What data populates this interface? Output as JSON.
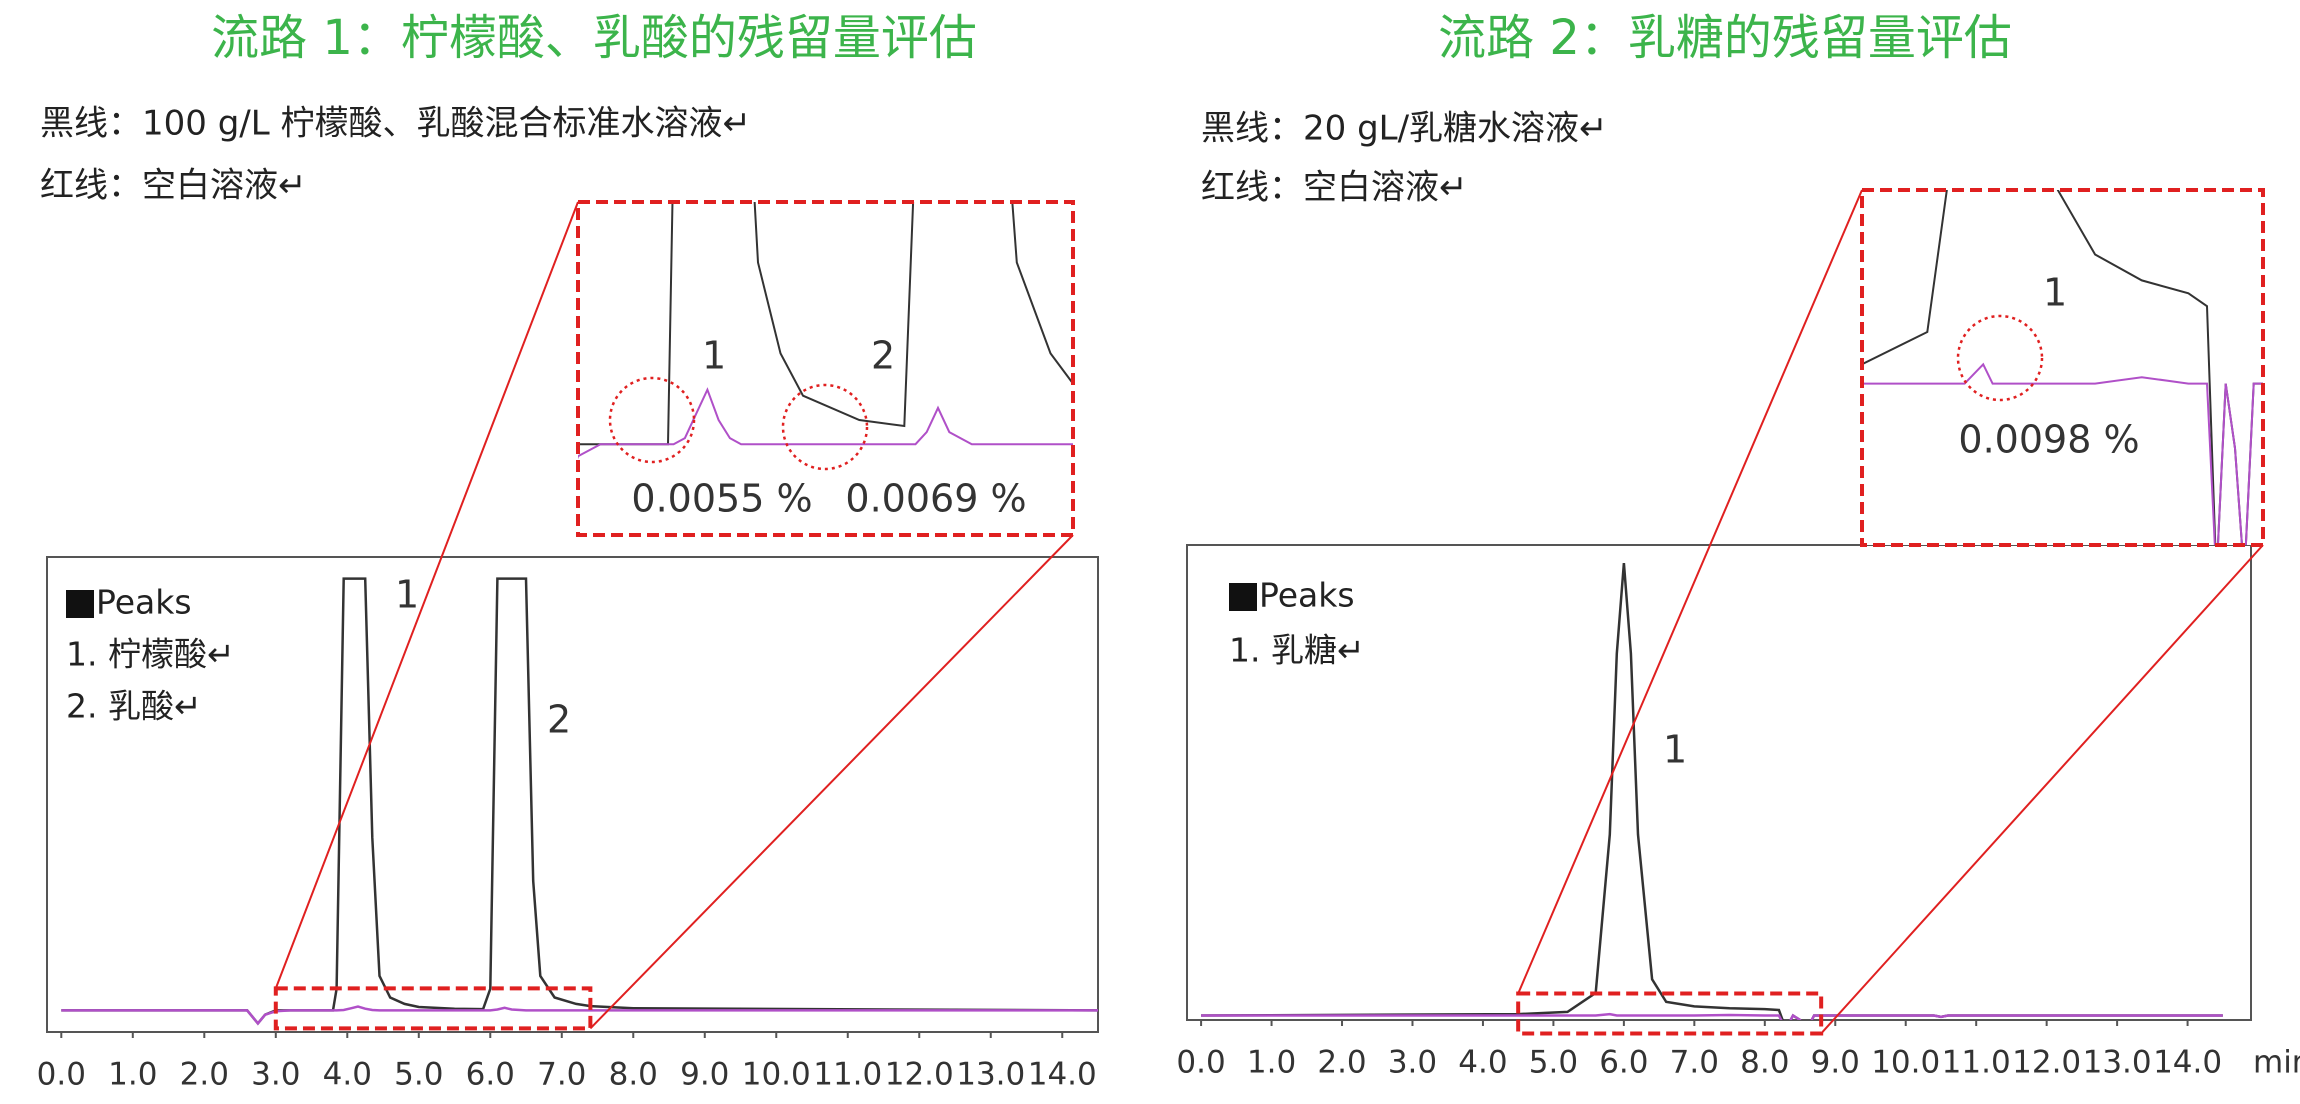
{
  "chart_data": [
    {
      "type": "line",
      "title": "流路 1：柠檬酸、乳酸的残留量评估",
      "x": [
        0,
        2.6,
        2.75,
        2.85,
        3.0,
        3.2,
        3.5,
        3.8,
        3.85,
        3.95,
        4.05,
        4.15,
        4.25,
        4.35,
        4.45,
        4.6,
        4.8,
        5.0,
        5.5,
        5.9,
        6.0,
        6.1,
        6.2,
        6.3,
        6.5,
        6.6,
        6.7,
        6.9,
        7.2,
        7.4,
        8.0,
        14.5
      ],
      "series": [
        {
          "name": "黑线：100 g/L 柠檬酸、乳酸混合标准水溶液↵",
          "color": "#333333",
          "values": [
            0,
            0,
            -3,
            -1,
            0,
            0,
            0,
            0,
            5,
            100,
            100,
            100,
            100,
            40,
            8,
            3,
            1.5,
            0.8,
            0.4,
            0.3,
            5,
            100,
            100,
            100,
            100,
            30,
            8,
            3,
            1.5,
            1,
            0.5,
            0
          ]
        },
        {
          "name": "红线：空白溶液↵",
          "color": "#b050c8",
          "values": [
            0,
            0,
            -3,
            -1,
            -0.2,
            0,
            0,
            0,
            0,
            0.1,
            0.5,
            0.9,
            0.4,
            0.1,
            0,
            0,
            0,
            0,
            0,
            0,
            0,
            0.2,
            0.6,
            0.2,
            0,
            0,
            0,
            0,
            0,
            0,
            0,
            0
          ]
        }
      ],
      "xlim": [
        -0.2,
        14.5
      ],
      "ylim": [
        -5,
        105
      ],
      "xticks": [
        {
          "value": 0,
          "label": "0.0"
        },
        {
          "value": 1,
          "label": "1.0"
        },
        {
          "value": 2,
          "label": "2.0"
        },
        {
          "value": 3,
          "label": "3.0"
        },
        {
          "value": 4,
          "label": "4.0"
        },
        {
          "value": 5,
          "label": "5.0"
        },
        {
          "value": 6,
          "label": "6.0"
        },
        {
          "value": 7,
          "label": "7.0"
        },
        {
          "value": 8,
          "label": "8.0"
        },
        {
          "value": 9,
          "label": "9.0"
        },
        {
          "value": 10,
          "label": "10.0"
        },
        {
          "value": 11,
          "label": "11.0"
        },
        {
          "value": 12,
          "label": "12.0"
        },
        {
          "value": 13,
          "label": "13.0"
        },
        {
          "value": 14,
          "label": "14.0"
        }
      ],
      "peaks_legend": {
        "title": "Peaks",
        "items": [
          "1. 柠檬酸↵",
          "2. 乳酸↵"
        ]
      },
      "peak_labels": [
        "1",
        "2"
      ],
      "inset": {
        "xlim": [
          3.0,
          7.4
        ],
        "ylim": [
          -1.5,
          4
        ],
        "labels": [
          "1",
          "2"
        ],
        "percents": [
          "0.0055 %",
          "0.0069 %"
        ]
      }
    },
    {
      "type": "line",
      "title": "流路 2：乳糖的残留量评估",
      "x": [
        0,
        4.5,
        5.2,
        5.6,
        5.8,
        5.9,
        6.0,
        6.1,
        6.2,
        6.4,
        6.6,
        7.0,
        7.5,
        8.0,
        8.2,
        8.3,
        8.4,
        8.5,
        8.6,
        8.7,
        8.8,
        10.4,
        10.5,
        10.6,
        14.5
      ],
      "series": [
        {
          "name": "黑线：20 gL/乳糖水溶液↵",
          "color": "#333333",
          "values": [
            0,
            0.3,
            0.8,
            5,
            40,
            80,
            100,
            80,
            40,
            8,
            3,
            2,
            1.6,
            1.4,
            1.2,
            -3,
            0,
            -1,
            -3,
            0,
            0,
            0,
            -0.3,
            0,
            0
          ]
        },
        {
          "name": "红线：空白溶液↵",
          "color": "#b050c8",
          "values": [
            0,
            0,
            0,
            0,
            0.3,
            0,
            0,
            0,
            0,
            0,
            0,
            0,
            0.1,
            0,
            0,
            -3,
            0,
            -1,
            -3,
            0,
            0,
            0,
            -0.3,
            0,
            0
          ]
        }
      ],
      "xlim": [
        -0.2,
        14.9
      ],
      "ylim": [
        -1,
        104
      ],
      "xticks": [
        {
          "value": 0,
          "label": "0.0"
        },
        {
          "value": 1,
          "label": "1.0"
        },
        {
          "value": 2,
          "label": "2.0"
        },
        {
          "value": 3,
          "label": "3.0"
        },
        {
          "value": 4,
          "label": "4.0"
        },
        {
          "value": 5,
          "label": "5.0"
        },
        {
          "value": 6,
          "label": "6.0"
        },
        {
          "value": 7,
          "label": "7.0"
        },
        {
          "value": 8,
          "label": "8.0"
        },
        {
          "value": 9,
          "label": "9.0"
        },
        {
          "value": 10,
          "label": "10.0"
        },
        {
          "value": 11,
          "label": "11.0"
        },
        {
          "value": 12,
          "label": "12.0"
        },
        {
          "value": 13,
          "label": "13.0"
        },
        {
          "value": 14,
          "label": "14.0"
        }
      ],
      "xlabel": "min",
      "peaks_legend": {
        "title": "Peaks",
        "items": [
          "1. 乳糖↵"
        ]
      },
      "peak_labels": [
        "1"
      ],
      "inset": {
        "xlim": [
          4.5,
          8.8
        ],
        "ylim": [
          -2.5,
          3
        ],
        "labels": [
          "1"
        ],
        "percents": [
          "0.0098 %"
        ]
      }
    }
  ]
}
